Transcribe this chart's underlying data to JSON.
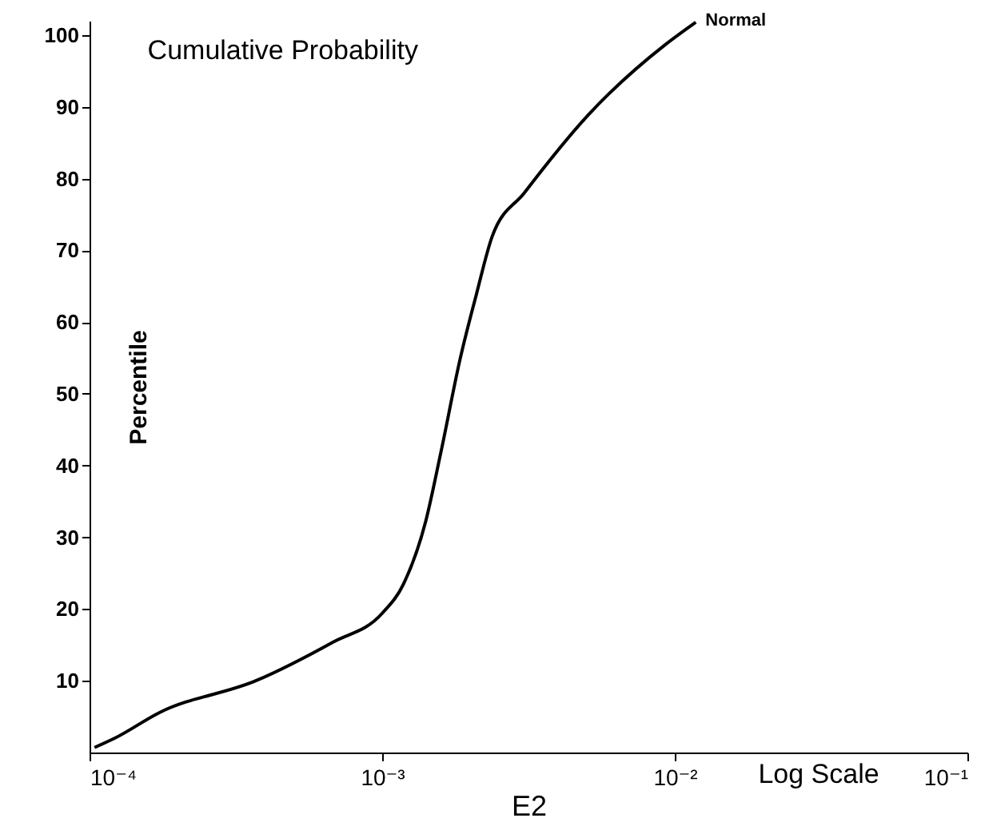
{
  "chart_data": {
    "type": "line",
    "title": "Cumulative Probability",
    "xlabel": "E2",
    "ylabel": "Percentile",
    "annotations": [
      "Log Scale"
    ],
    "log": "x",
    "grid": false,
    "marker": "none",
    "line_style": "solid",
    "xlim": [
      0.0001,
      0.1
    ],
    "xticks": [
      {
        "value": 0.0001,
        "label": "10⁻⁴"
      },
      {
        "value": 0.001,
        "label": "10⁻³"
      },
      {
        "value": 0.01,
        "label": "10⁻²"
      },
      {
        "value": 0.1,
        "label": "10⁻¹"
      }
    ],
    "ylim": [
      0,
      102
    ],
    "yticks": [
      10,
      20,
      30,
      40,
      50,
      60,
      70,
      80,
      90,
      100
    ],
    "series": [
      {
        "name": "Normal",
        "color": "#000000",
        "x": [
          0.000104,
          0.000122,
          0.000174,
          0.00037,
          0.00068,
          0.001,
          0.00118,
          0.00141,
          0.00159,
          0.00185,
          0.0021,
          0.00238,
          0.00306,
          0.00507,
          0.0093,
          0.0118
        ],
        "values": [
          0.7,
          2,
          5.6,
          10,
          15.4,
          19.4,
          23.4,
          32.3,
          42,
          55,
          63.9,
          72,
          78,
          88.9,
          98.7,
          101.8
        ]
      }
    ]
  }
}
